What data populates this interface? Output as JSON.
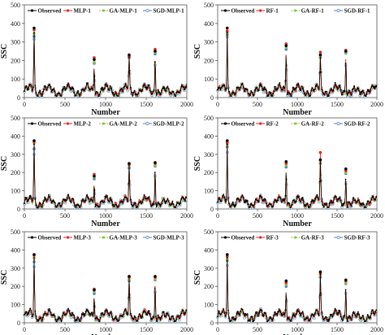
{
  "figure": {
    "colors": {
      "Observed": "#000000",
      "MLP": "#e8261c",
      "RF": "#e8261c",
      "GA": "#8cc63f",
      "SGD": "#4f81bd",
      "SGD_fill": "#dbe6f4",
      "axis": "#555555"
    }
  },
  "chart_data": [
    {
      "type": "line",
      "ylabel": "SSC",
      "xlabel": "Number",
      "xlim": [
        0,
        2000
      ],
      "ylim": [
        0,
        500
      ],
      "xticks": [
        "0",
        "500",
        "1000",
        "1500",
        "2000"
      ],
      "yticks": [
        "0",
        "100",
        "200",
        "300",
        "400",
        "500"
      ],
      "legend_position": "top-center",
      "series": [
        {
          "name": "Observed",
          "peaks": [
            [
              120,
              375
            ],
            [
              860,
              205
            ],
            [
              1290,
              230
            ],
            [
              1610,
              250
            ]
          ]
        },
        {
          "name": "MLP-1",
          "peaks": [
            [
              120,
              365
            ],
            [
              860,
              215
            ],
            [
              1290,
              220
            ],
            [
              1610,
              260
            ]
          ]
        },
        {
          "name": "GA-MLP-1",
          "peaks": [
            [
              120,
              345
            ],
            [
              860,
              190
            ],
            [
              1290,
              225
            ],
            [
              1610,
              245
            ]
          ]
        },
        {
          "name": "SGD-MLP-1",
          "peaks": [
            [
              120,
              330
            ],
            [
              860,
              185
            ],
            [
              1290,
              215
            ],
            [
              1610,
              235
            ]
          ]
        }
      ]
    },
    {
      "type": "line",
      "ylabel": "SSC",
      "xlabel": "Number",
      "xlim": [
        0,
        2000
      ],
      "ylim": [
        0,
        500
      ],
      "xticks": [
        "0",
        "500",
        "1000",
        "1500",
        "2000"
      ],
      "yticks": [
        "0",
        "100",
        "200",
        "300",
        "400",
        "500"
      ],
      "legend_position": "top-center",
      "series": [
        {
          "name": "Observed",
          "peaks": [
            [
              120,
              375
            ],
            [
              860,
              280
            ],
            [
              1290,
              230
            ],
            [
              1610,
              250
            ]
          ]
        },
        {
          "name": "RF-1",
          "peaks": [
            [
              120,
              360
            ],
            [
              860,
              290
            ],
            [
              1290,
              245
            ],
            [
              1610,
              255
            ]
          ]
        },
        {
          "name": "GA-RF-1",
          "peaks": [
            [
              120,
              350
            ],
            [
              860,
              270
            ],
            [
              1290,
              225
            ],
            [
              1610,
              245
            ]
          ]
        },
        {
          "name": "SGD-RF-1",
          "peaks": [
            [
              120,
              340
            ],
            [
              860,
              260
            ],
            [
              1290,
              215
            ],
            [
              1610,
              240
            ]
          ]
        }
      ]
    },
    {
      "type": "line",
      "ylabel": "SSC",
      "xlabel": "Number",
      "xlim": [
        0,
        2000
      ],
      "ylim": [
        0,
        500
      ],
      "xticks": [
        "0",
        "500",
        "1000",
        "1500",
        "2000"
      ],
      "yticks": [
        "0",
        "100",
        "200",
        "300",
        "400",
        "500"
      ],
      "legend_position": "top-center",
      "series": [
        {
          "name": "Observed",
          "peaks": [
            [
              120,
              375
            ],
            [
              860,
              180
            ],
            [
              1290,
              250
            ],
            [
              1610,
              255
            ]
          ]
        },
        {
          "name": "MLP-2",
          "peaks": [
            [
              120,
              370
            ],
            [
              860,
              190
            ],
            [
              1290,
              245
            ],
            [
              1610,
              250
            ]
          ]
        },
        {
          "name": "GA-MLP-2",
          "peaks": [
            [
              120,
              360
            ],
            [
              860,
              175
            ],
            [
              1290,
              235
            ],
            [
              1610,
              240
            ]
          ]
        },
        {
          "name": "SGD-MLP-2",
          "peaks": [
            [
              120,
              330
            ],
            [
              860,
              165
            ],
            [
              1290,
              225
            ],
            [
              1610,
              235
            ]
          ]
        }
      ]
    },
    {
      "type": "line",
      "ylabel": "SSC",
      "xlabel": "Number",
      "xlim": [
        0,
        2000
      ],
      "ylim": [
        0,
        500
      ],
      "xticks": [
        "0",
        "500",
        "1000",
        "1500",
        "2000"
      ],
      "yticks": [
        "0",
        "100",
        "200",
        "300",
        "400",
        "500"
      ],
      "legend_position": "top-center",
      "series": [
        {
          "name": "Observed",
          "peaks": [
            [
              120,
              375
            ],
            [
              860,
              260
            ],
            [
              1290,
              270
            ],
            [
              1610,
              220
            ]
          ]
        },
        {
          "name": "RF-2",
          "peaks": [
            [
              120,
              365
            ],
            [
              860,
              250
            ],
            [
              1290,
              310
            ],
            [
              1610,
              210
            ]
          ]
        },
        {
          "name": "GA-RF-2",
          "peaks": [
            [
              120,
              355
            ],
            [
              860,
              240
            ],
            [
              1290,
              260
            ],
            [
              1610,
              200
            ]
          ]
        },
        {
          "name": "SGD-RF-2",
          "peaks": [
            [
              120,
              340
            ],
            [
              860,
              230
            ],
            [
              1290,
              250
            ],
            [
              1610,
              195
            ]
          ]
        }
      ]
    },
    {
      "type": "line",
      "ylabel": "SSC",
      "xlabel": "Number",
      "xlim": [
        0,
        2000
      ],
      "ylim": [
        0,
        500
      ],
      "xticks": [
        "0",
        "500",
        "1000",
        "1500",
        "2000"
      ],
      "yticks": [
        "0",
        "100",
        "200",
        "300",
        "400",
        "500"
      ],
      "legend_position": "top-center",
      "series": [
        {
          "name": "Observed",
          "peaks": [
            [
              120,
              375
            ],
            [
              860,
              180
            ],
            [
              1290,
              255
            ],
            [
              1610,
              255
            ]
          ]
        },
        {
          "name": "MLP-3",
          "peaks": [
            [
              120,
              370
            ],
            [
              860,
              185
            ],
            [
              1290,
              250
            ],
            [
              1610,
              250
            ]
          ]
        },
        {
          "name": "GA-MLP-3",
          "peaks": [
            [
              120,
              355
            ],
            [
              860,
              170
            ],
            [
              1290,
              240
            ],
            [
              1610,
              240
            ]
          ]
        },
        {
          "name": "SGD-MLP-3",
          "peaks": [
            [
              120,
              335
            ],
            [
              860,
              160
            ],
            [
              1290,
              230
            ],
            [
              1610,
              235
            ]
          ]
        }
      ]
    },
    {
      "type": "line",
      "ylabel": "SSC",
      "xlabel": "Number",
      "xlim": [
        0,
        2000
      ],
      "ylim": [
        0,
        500
      ],
      "xticks": [
        "0",
        "500",
        "1000",
        "1500",
        "2000"
      ],
      "yticks": [
        "0",
        "100",
        "200",
        "300",
        "400",
        "500"
      ],
      "legend_position": "top-center",
      "series": [
        {
          "name": "Observed",
          "peaks": [
            [
              120,
              375
            ],
            [
              860,
              230
            ],
            [
              1290,
              280
            ],
            [
              1610,
              235
            ]
          ]
        },
        {
          "name": "RF-3",
          "peaks": [
            [
              120,
              365
            ],
            [
              860,
              220
            ],
            [
              1290,
              270
            ],
            [
              1610,
              230
            ]
          ]
        },
        {
          "name": "GA-RF-3",
          "peaks": [
            [
              120,
              350
            ],
            [
              860,
              210
            ],
            [
              1290,
              260
            ],
            [
              1610,
              220
            ]
          ]
        },
        {
          "name": "SGD-RF-3",
          "peaks": [
            [
              120,
              340
            ],
            [
              860,
              200
            ],
            [
              1290,
              250
            ],
            [
              1610,
              215
            ]
          ]
        }
      ]
    }
  ]
}
